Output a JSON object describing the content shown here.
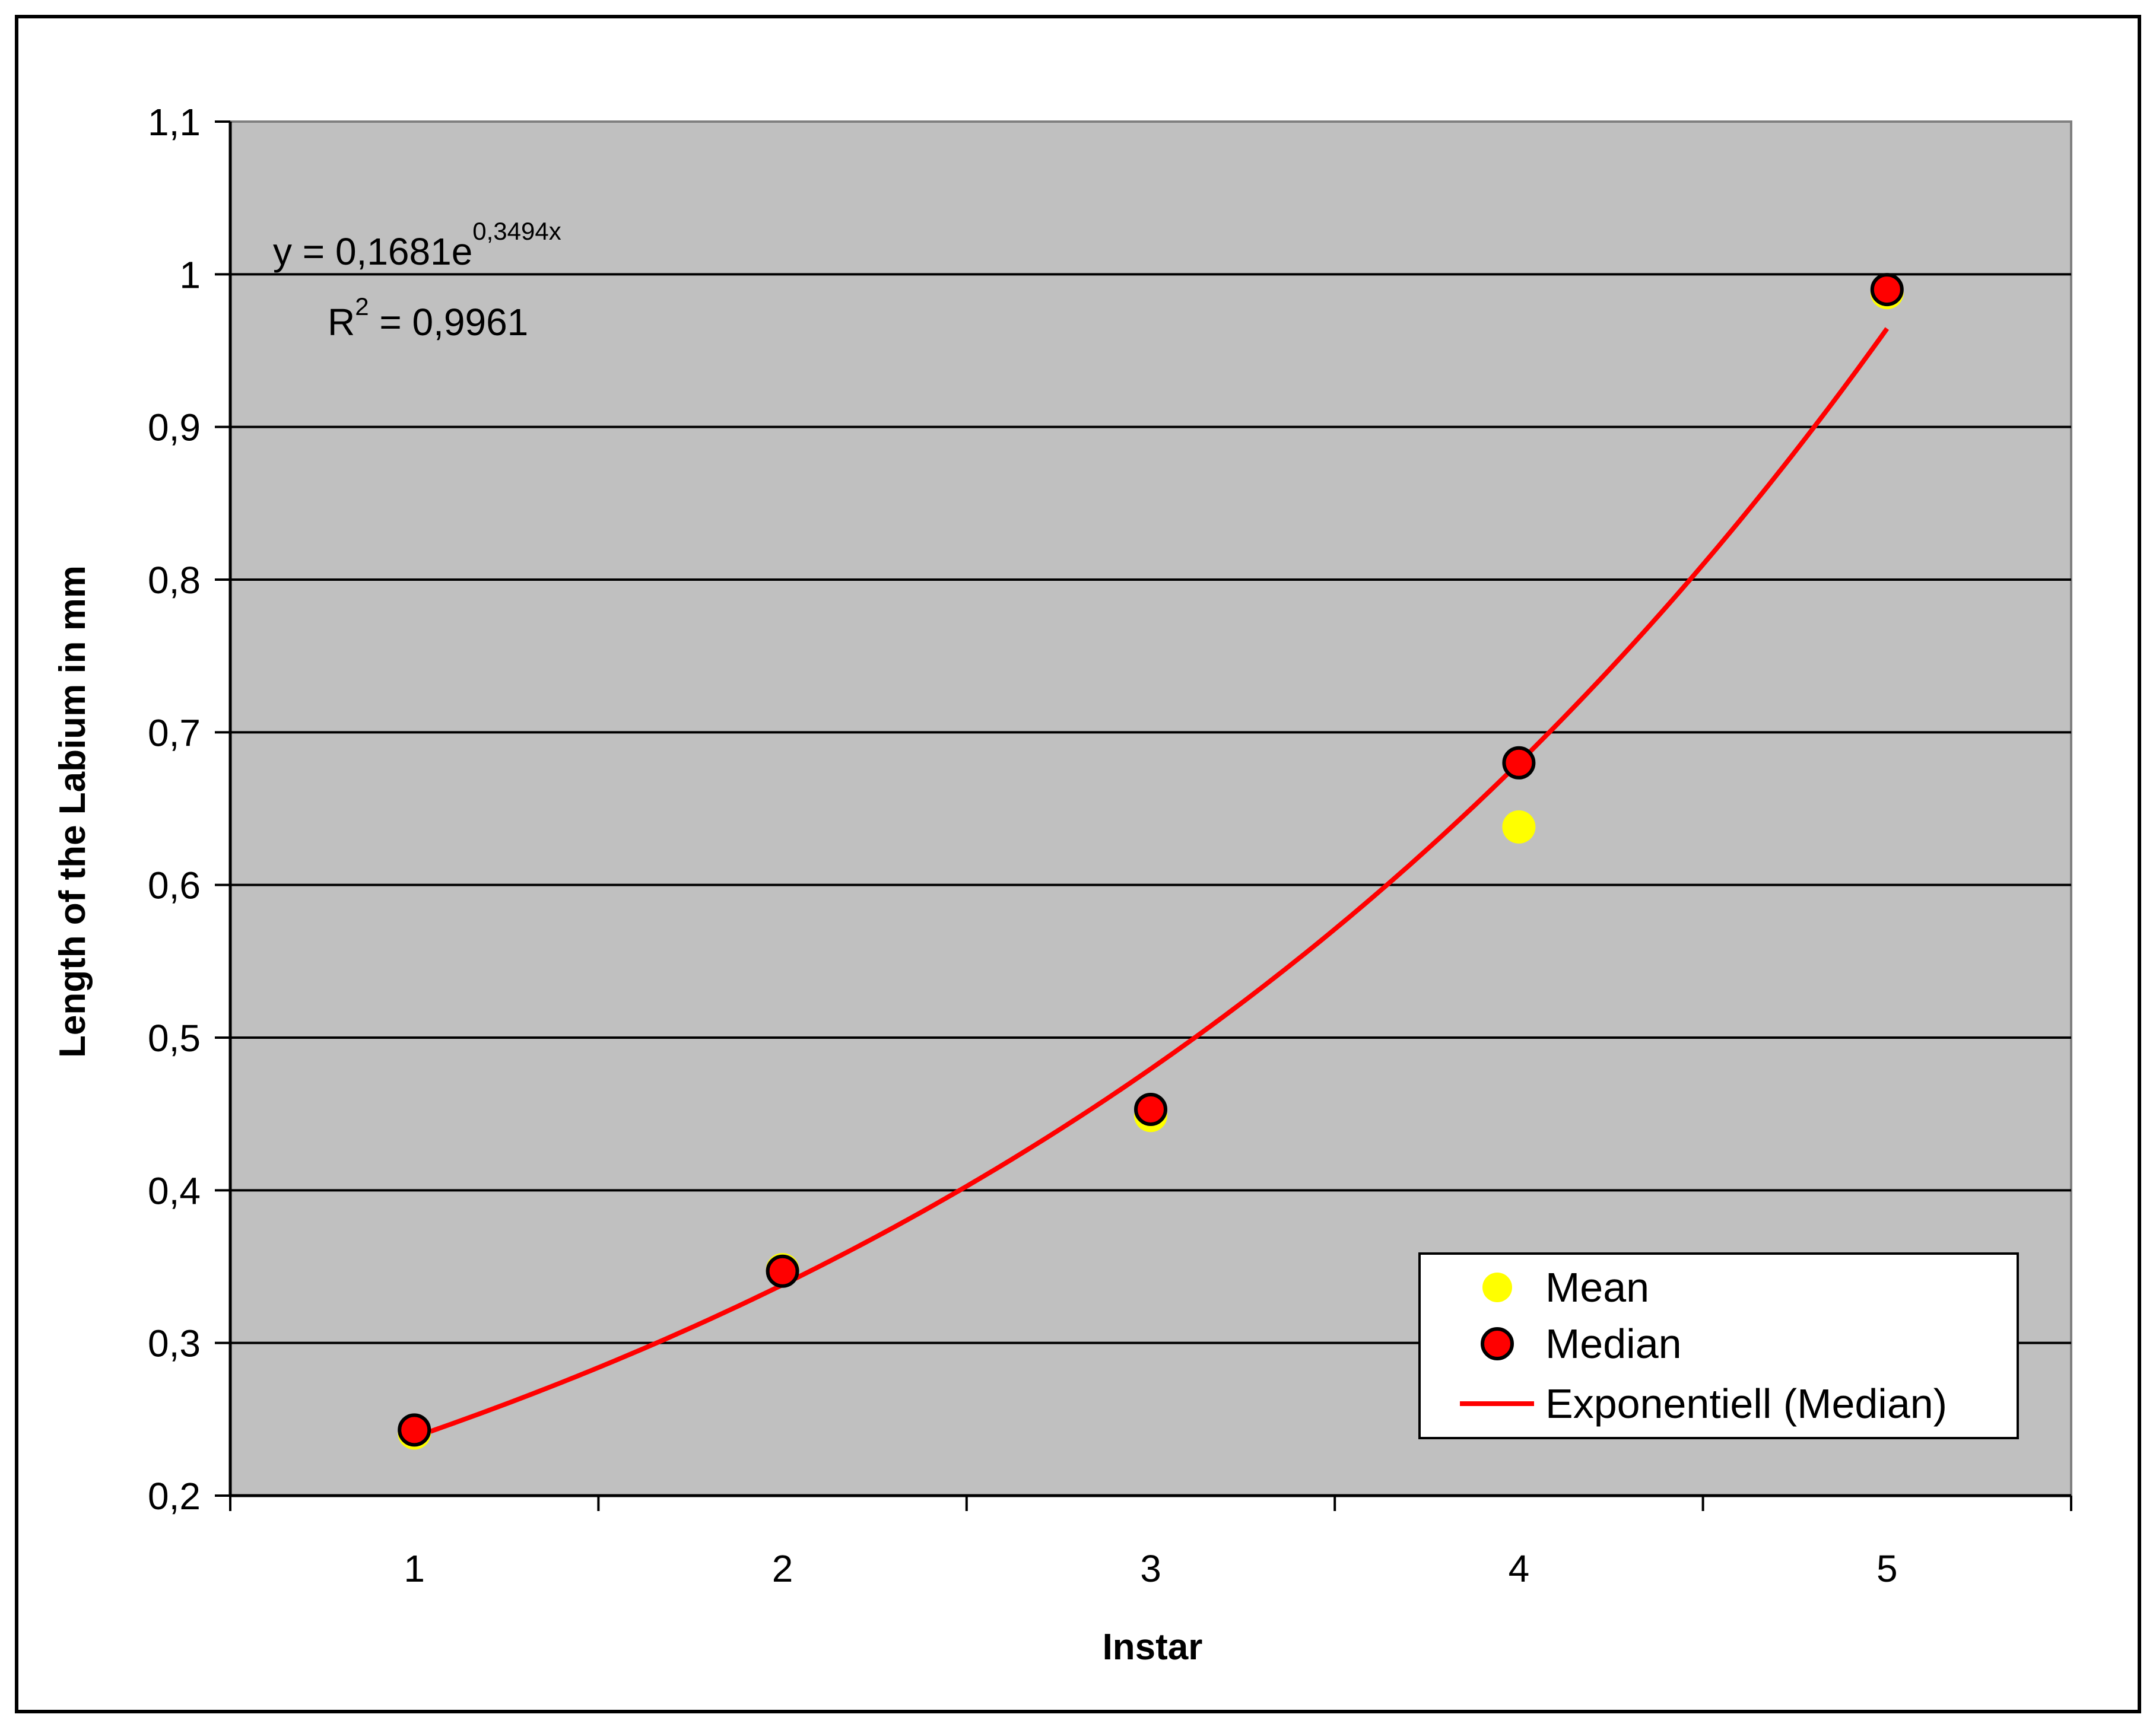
{
  "chart_data": {
    "type": "scatter",
    "title": "",
    "xlabel": "Instar",
    "ylabel": "Length of the Labium in mm",
    "xlim": [
      0.5,
      5.5
    ],
    "ylim": [
      0.2,
      1.1
    ],
    "x_tick_labels": [
      "1",
      "2",
      "3",
      "4",
      "5"
    ],
    "y_tick_labels": [
      "0,2",
      "0,3",
      "0,4",
      "0,5",
      "0,6",
      "0,7",
      "0,8",
      "0,9",
      "1",
      "1,1"
    ],
    "grid": true,
    "plot_background": "#c0c0c0",
    "legend_position": "bottom-right",
    "series": [
      {
        "name": "Mean",
        "color": "#ffff00",
        "marker": "circle-no-outline",
        "x": [
          1,
          2,
          3,
          4,
          5
        ],
        "y": [
          0.241,
          0.348,
          0.449,
          0.638,
          0.988
        ]
      },
      {
        "name": "Median",
        "color": "#ff0000",
        "marker": "circle-black-outline",
        "x": [
          1,
          2,
          3,
          4,
          5
        ],
        "y": [
          0.243,
          0.347,
          0.453,
          0.68,
          0.99
        ]
      }
    ],
    "trendline": {
      "name": "Exponentiell (Median)",
      "color": "#ff0000",
      "type": "exponential",
      "a": 0.1681,
      "b": 0.3494,
      "x_range": [
        1,
        5
      ]
    },
    "annotations": {
      "equation_base": "y = 0,1681e",
      "equation_exponent": "0,3494x",
      "r2_base": "R",
      "r2_superscript": "2",
      "r2_value": " = 0,9961"
    }
  }
}
